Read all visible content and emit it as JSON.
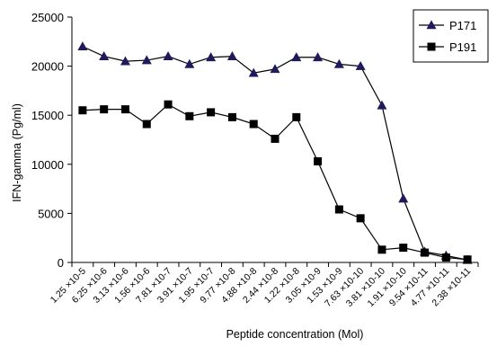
{
  "chart_data": {
    "type": "line",
    "title": "",
    "xlabel": "Peptide concentration (Mol)",
    "ylabel": "IFN-gamma (Pg/ml)",
    "ylim": [
      0,
      25000
    ],
    "yticks": [
      "0",
      "5000",
      "10000",
      "15000",
      "20000",
      "25000"
    ],
    "grid": false,
    "legend_position": "top-right",
    "categories": [
      "1.25 ×10-5",
      "6.25 ×10-6",
      "3.13 ×10-6",
      "1.56 ×10-6",
      "7.81 ×10-7",
      "3.91 ×10-7",
      "1.95 ×10-7",
      "9.77 ×10-8",
      "4.88 ×10-8",
      "2.44 ×10-8",
      "1.22 ×10-8",
      "3.05 ×10-9",
      "1.53 ×10-9",
      "7.63 ×10-10",
      "3.81 ×10-10",
      "1.91 ×10-10",
      "9.54 ×10-11",
      "4.77 ×10-11",
      "2.38 ×10-11"
    ],
    "series": [
      {
        "name": "P171",
        "marker": "triangle",
        "values": [
          22000,
          21000,
          20500,
          20600,
          21000,
          20200,
          20900,
          21000,
          19300,
          19700,
          20900,
          20900,
          20200,
          20000,
          16000,
          6500,
          1100,
          700,
          250
        ]
      },
      {
        "name": "P191",
        "marker": "square",
        "values": [
          15500,
          15600,
          15600,
          14100,
          16100,
          14900,
          15300,
          14800,
          14100,
          12600,
          14800,
          10300,
          5400,
          4500,
          1300,
          1500,
          1000,
          500,
          300
        ]
      }
    ]
  }
}
